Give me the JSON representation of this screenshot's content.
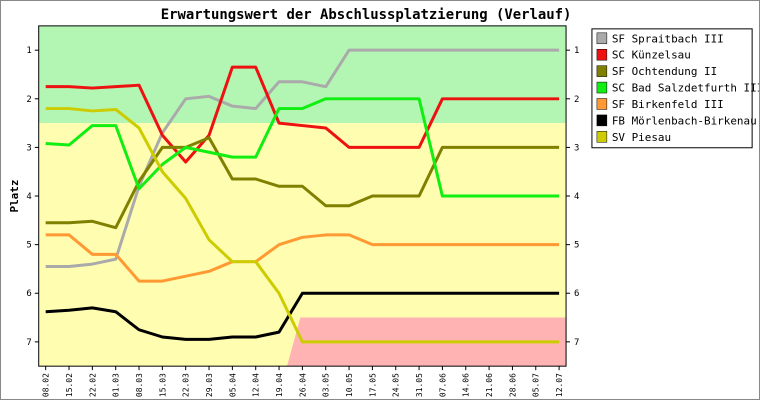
{
  "chart_data": {
    "type": "line",
    "title": "Erwartungswert der Abschlussplatzierung (Verlauf)",
    "ylabel": "Platz",
    "ylim": [
      0.5,
      7.5
    ],
    "y_ticks": [
      "1",
      "2",
      "3",
      "4",
      "5",
      "6",
      "7"
    ],
    "y_inverted": true,
    "grid": false,
    "legend_position": "right",
    "x": [
      "08.02",
      "15.02",
      "22.02",
      "01.03",
      "08.03",
      "15.03",
      "22.03",
      "29.03",
      "05.04",
      "12.04",
      "19.04",
      "26.04",
      "03.05",
      "10.05",
      "17.05",
      "24.05",
      "31.05",
      "07.06",
      "14.06",
      "21.06",
      "28.06",
      "05.07",
      "12.07"
    ],
    "bands": [
      {
        "name": "promotion",
        "from": 0.5,
        "to": 2.5,
        "color": "#b3f5b3"
      },
      {
        "name": "middle",
        "from": 2.5,
        "to": 7.5,
        "color": "#fffdb0"
      },
      {
        "name": "relegation",
        "from": 6.5,
        "to": 7.5,
        "color": "#ffb3b3"
      }
    ],
    "series": [
      {
        "name": "SF Spraitbach III",
        "color": "#aaaaaa",
        "values": [
          5.45,
          5.45,
          5.4,
          5.3,
          3.8,
          2.7,
          2.0,
          1.95,
          2.15,
          2.2,
          1.65,
          1.65,
          1.75,
          1.0,
          1.0,
          1.0,
          1.0,
          1.0,
          1.0,
          1.0,
          1.0,
          1.0,
          1.0
        ]
      },
      {
        "name": "SC Künzelsau",
        "color": "#ee1111",
        "values": [
          1.75,
          1.75,
          1.78,
          1.75,
          1.72,
          2.75,
          3.3,
          2.75,
          1.35,
          1.35,
          2.5,
          2.55,
          2.6,
          3.0,
          3.0,
          3.0,
          3.0,
          2.0,
          2.0,
          2.0,
          2.0,
          2.0,
          2.0
        ]
      },
      {
        "name": "SF Ochtendung II",
        "color": "#808000",
        "values": [
          4.55,
          4.55,
          4.52,
          4.65,
          3.7,
          3.0,
          3.0,
          2.8,
          3.65,
          3.65,
          3.8,
          3.8,
          4.2,
          4.2,
          4.0,
          4.0,
          4.0,
          3.0,
          3.0,
          3.0,
          3.0,
          3.0,
          3.0
        ]
      },
      {
        "name": "SC Bad Salzdetfurth III",
        "color": "#11ee11",
        "values": [
          2.92,
          2.95,
          2.55,
          2.55,
          3.85,
          3.35,
          3.0,
          3.1,
          3.2,
          3.2,
          2.2,
          2.2,
          2.0,
          2.0,
          2.0,
          2.0,
          2.0,
          4.0,
          4.0,
          4.0,
          4.0,
          4.0,
          4.0
        ]
      },
      {
        "name": "SF Birkenfeld III",
        "color": "#ff9933",
        "values": [
          4.8,
          4.8,
          5.2,
          5.2,
          5.75,
          5.75,
          5.65,
          5.55,
          5.35,
          5.35,
          5.0,
          4.85,
          4.8,
          4.8,
          5.0,
          5.0,
          5.0,
          5.0,
          5.0,
          5.0,
          5.0,
          5.0,
          5.0
        ]
      },
      {
        "name": "FB Mörlenbach-Birkenau",
        "color": "#000000",
        "values": [
          6.38,
          6.35,
          6.3,
          6.38,
          6.75,
          6.9,
          6.95,
          6.95,
          6.9,
          6.9,
          6.8,
          6.0,
          6.0,
          6.0,
          6.0,
          6.0,
          6.0,
          6.0,
          6.0,
          6.0,
          6.0,
          6.0,
          6.0
        ]
      },
      {
        "name": "SV Piesau",
        "color": "#cccc00",
        "values": [
          2.2,
          2.2,
          2.25,
          2.22,
          2.6,
          3.5,
          4.05,
          4.9,
          5.35,
          5.35,
          6.0,
          7.0,
          7.0,
          7.0,
          7.0,
          7.0,
          7.0,
          7.0,
          7.0,
          7.0,
          7.0,
          7.0,
          7.0
        ]
      }
    ]
  }
}
